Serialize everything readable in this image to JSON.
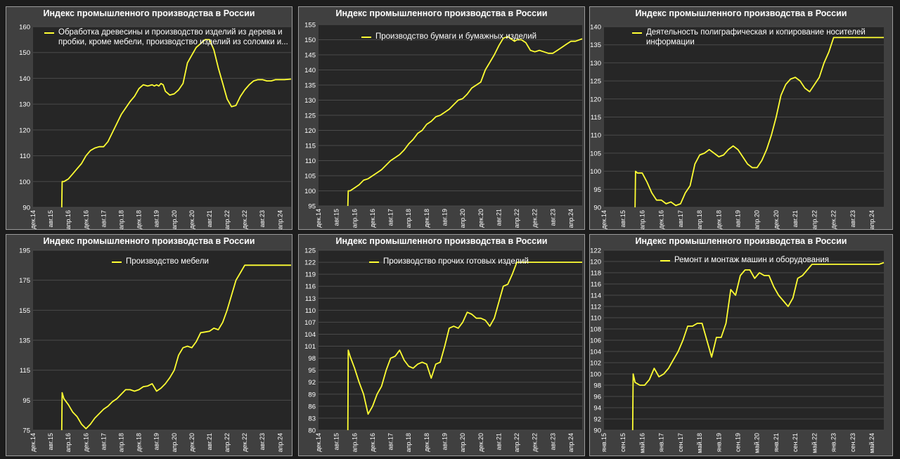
{
  "page": {
    "background": "#1c1c1c",
    "panel_background": "#404040",
    "plot_background": "#262626",
    "line_color": "#ffff33"
  },
  "chart_data": [
    {
      "type": "line",
      "title": "Индекс промышленного производства в России",
      "series": [
        {
          "name": "Обработка древесины и производство изделий из дерева и пробки, кроме мебели, производство изделий из соломки и..."
        }
      ],
      "ylim": [
        90,
        160
      ],
      "yticks": [
        90,
        100,
        110,
        120,
        130,
        140,
        150,
        160
      ],
      "xlim": [
        0,
        117
      ],
      "xtick_labels": [
        "дек.14",
        "авг.15",
        "апр.16",
        "дек.16",
        "авг.17",
        "апр.18",
        "дек.18",
        "авг.19",
        "апр.20",
        "дек.20",
        "авг.21",
        "апр.22",
        "дек.22",
        "авг.23",
        "апр.24"
      ],
      "xtick_positions": [
        0,
        8,
        16,
        24,
        32,
        40,
        48,
        56,
        64,
        72,
        80,
        88,
        96,
        104,
        112
      ],
      "x": [
        13,
        13.2,
        14,
        16,
        18,
        20,
        22,
        24,
        26,
        28,
        30,
        32,
        34,
        36,
        40,
        44,
        46,
        48,
        50,
        52,
        54,
        55,
        56,
        57,
        58,
        59,
        60,
        62,
        64,
        66,
        68,
        70,
        72,
        74,
        76,
        78,
        80,
        82,
        84,
        86,
        88,
        90,
        92,
        94,
        96,
        98,
        100,
        102,
        104,
        106,
        108,
        110,
        112,
        114,
        117
      ],
      "values": [
        90,
        100,
        100,
        101,
        103,
        105,
        107,
        110,
        112,
        113,
        113.5,
        113.5,
        115.5,
        119,
        126,
        131,
        133,
        136,
        137.5,
        137,
        137.5,
        137,
        137.5,
        137,
        138,
        137.5,
        135,
        133.5,
        134,
        135.5,
        138,
        146,
        149,
        152,
        153.5,
        155,
        155,
        151,
        144,
        138,
        132,
        129,
        129.5,
        133,
        135.5,
        137.5,
        139,
        139.5,
        139.5,
        139,
        139,
        139.5,
        139.5,
        139.5,
        139.7
      ]
    },
    {
      "type": "line",
      "title": "Индекс промышленного производства в России",
      "series": [
        {
          "name": "Производство бумаги и бумажных изделий"
        }
      ],
      "ylim": [
        95,
        155
      ],
      "yticks": [
        95,
        100,
        105,
        110,
        115,
        120,
        125,
        130,
        135,
        140,
        145,
        150,
        155
      ],
      "xlim": [
        0,
        117
      ],
      "xtick_labels": [
        "дек.14",
        "авг.15",
        "апр.16",
        "дек.16",
        "авг.17",
        "апр.18",
        "дек.18",
        "авг.19",
        "апр.20",
        "дек.20",
        "авг.21",
        "апр.22",
        "дек.22",
        "авг.23",
        "апр.24"
      ],
      "xtick_positions": [
        0,
        8,
        16,
        24,
        32,
        40,
        48,
        56,
        64,
        72,
        80,
        88,
        96,
        104,
        112
      ],
      "x": [
        13,
        13.2,
        14,
        16,
        18,
        20,
        22,
        24,
        26,
        28,
        30,
        32,
        34,
        36,
        38,
        40,
        42,
        44,
        46,
        48,
        50,
        52,
        54,
        56,
        58,
        60,
        62,
        64,
        66,
        68,
        70,
        72,
        74,
        76,
        78,
        80,
        82,
        84,
        86,
        87,
        88,
        90,
        92,
        94,
        96,
        98,
        100,
        102,
        104,
        106,
        108,
        110,
        112,
        114,
        117
      ],
      "values": [
        95,
        100,
        100,
        101,
        102,
        103.5,
        104,
        105,
        106,
        107,
        108.5,
        110,
        111,
        112,
        113.5,
        115.5,
        117,
        119,
        120,
        122,
        123,
        124.5,
        125,
        126,
        127,
        128.5,
        130,
        130.5,
        132,
        134,
        135,
        136,
        140,
        142.5,
        145,
        148,
        150.5,
        151,
        150,
        149.5,
        150,
        150,
        149,
        146.5,
        146,
        146.5,
        146,
        145.5,
        145.5,
        146.5,
        147.5,
        148.5,
        149.5,
        149.5,
        150.3
      ]
    },
    {
      "type": "line",
      "title": "Индекс промышленного производства в России",
      "series": [
        {
          "name": "Деятельность полиграфическая и копирование носителей информации"
        }
      ],
      "ylim": [
        90,
        140
      ],
      "yticks": [
        90,
        95,
        100,
        105,
        110,
        115,
        120,
        125,
        130,
        135,
        140
      ],
      "xlim": [
        0,
        117
      ],
      "xtick_labels": [
        "дек.14",
        "авг.15",
        "апр.16",
        "дек.16",
        "авг.17",
        "апр.18",
        "дек.18",
        "авг.19",
        "апр.20",
        "дек.20",
        "авг.21",
        "апр.22",
        "дек.22",
        "авг.23",
        "апр.24"
      ],
      "xtick_positions": [
        0,
        8,
        16,
        24,
        32,
        40,
        48,
        56,
        64,
        72,
        80,
        88,
        96,
        104,
        112
      ],
      "x": [
        13,
        13.2,
        14,
        16,
        18,
        20,
        22,
        24,
        26,
        28,
        30,
        32,
        34,
        36,
        38,
        40,
        42,
        44,
        46,
        48,
        50,
        52,
        54,
        56,
        58,
        60,
        62,
        64,
        66,
        68,
        70,
        72,
        74,
        76,
        78,
        80,
        82,
        84,
        86,
        88,
        90,
        92,
        94,
        96,
        98,
        100,
        102,
        104,
        106,
        108,
        110,
        112,
        114,
        117
      ],
      "values": [
        90,
        100,
        99.5,
        99.5,
        97,
        94,
        92,
        92,
        91,
        91.5,
        90.5,
        91,
        94,
        96,
        102,
        104.5,
        105,
        106,
        105,
        104,
        104.5,
        106,
        107,
        106,
        104,
        102,
        101,
        101,
        103,
        106,
        110,
        115,
        121,
        124,
        125.5,
        126,
        125,
        123,
        122,
        124,
        126,
        130,
        133,
        137,
        137,
        137,
        137,
        137,
        137,
        137,
        137,
        137,
        137,
        137
      ]
    },
    {
      "type": "line",
      "title": "Индекс промышленного производства в России",
      "series": [
        {
          "name": "Производство мебели"
        }
      ],
      "ylim": [
        75,
        195
      ],
      "yticks": [
        75,
        95,
        115,
        135,
        155,
        175,
        195
      ],
      "xlim": [
        0,
        117
      ],
      "xtick_labels": [
        "дек.14",
        "авг.15",
        "апр.16",
        "дек.16",
        "авг.17",
        "апр.18",
        "дек.18",
        "авг.19",
        "апр.20",
        "дек.20",
        "авг.21",
        "апр.22",
        "дек.22",
        "авг.23",
        "апр.24"
      ],
      "xtick_positions": [
        0,
        8,
        16,
        24,
        32,
        40,
        48,
        56,
        64,
        72,
        80,
        88,
        96,
        104,
        112
      ],
      "x": [
        13,
        13.2,
        14,
        16,
        18,
        20,
        22,
        24,
        26,
        28,
        30,
        32,
        34,
        36,
        38,
        40,
        42,
        44,
        46,
        48,
        50,
        52,
        54,
        56,
        58,
        60,
        62,
        64,
        66,
        68,
        70,
        72,
        74,
        76,
        78,
        80,
        82,
        84,
        86,
        88,
        90,
        92,
        94,
        96,
        98,
        100,
        102,
        104,
        106,
        108,
        110,
        112,
        114,
        117
      ],
      "values": [
        75,
        100,
        96,
        92,
        87,
        84,
        79,
        76,
        79,
        83,
        86,
        89,
        91,
        94,
        96,
        99,
        102,
        102,
        101,
        102,
        104,
        104.5,
        106,
        101,
        103,
        106,
        110,
        115,
        125,
        130,
        131,
        130,
        134,
        140,
        140.5,
        141,
        143,
        142,
        147,
        155,
        165,
        175,
        180,
        185,
        185,
        185,
        185,
        185,
        185,
        185,
        185,
        185,
        185,
        185
      ]
    },
    {
      "type": "line",
      "title": "Индекс промышленного производства в России",
      "series": [
        {
          "name": "Производство прочих готовых изделий"
        }
      ],
      "ylim": [
        80,
        125
      ],
      "yticks": [
        80,
        83,
        86,
        89,
        92,
        95,
        98,
        101,
        104,
        107,
        110,
        113,
        116,
        119,
        122,
        125
      ],
      "xlim": [
        0,
        117
      ],
      "xtick_labels": [
        "дек.14",
        "авг.15",
        "апр.16",
        "дек.16",
        "авг.17",
        "апр.18",
        "дек.18",
        "авг.19",
        "апр.20",
        "дек.20",
        "авг.21",
        "апр.22",
        "дек.22",
        "авг.23",
        "апр.24"
      ],
      "xtick_positions": [
        0,
        8,
        16,
        24,
        32,
        40,
        48,
        56,
        64,
        72,
        80,
        88,
        96,
        104,
        112
      ],
      "x": [
        13,
        13.2,
        14,
        16,
        18,
        20,
        22,
        24,
        26,
        28,
        30,
        32,
        34,
        36,
        38,
        40,
        42,
        44,
        46,
        48,
        50,
        52,
        54,
        56,
        58,
        60,
        62,
        64,
        66,
        68,
        70,
        72,
        74,
        76,
        78,
        80,
        82,
        84,
        86,
        88,
        90,
        92,
        94,
        96,
        98,
        100,
        102,
        104,
        106,
        108,
        110,
        112,
        114,
        117
      ],
      "values": [
        80,
        100,
        98.5,
        95.5,
        92,
        89,
        84,
        86,
        89,
        91,
        95,
        98,
        98.5,
        100,
        97.5,
        96,
        95.5,
        96.5,
        97,
        96.5,
        93,
        96.5,
        97,
        101,
        105.5,
        106,
        105.5,
        107,
        109.5,
        109,
        108,
        108,
        107.5,
        106,
        108,
        112,
        116,
        116.5,
        119,
        122,
        122,
        122,
        122,
        122,
        122,
        122,
        122,
        122,
        122,
        122,
        122,
        122,
        122,
        122
      ]
    },
    {
      "type": "line",
      "title": "Индекс промышленного производства в России",
      "series": [
        {
          "name": "Ремонт и монтаж машин и оборудования"
        }
      ],
      "ylim": [
        90,
        122
      ],
      "yticks": [
        90,
        92,
        94,
        96,
        98,
        100,
        102,
        104,
        106,
        108,
        110,
        112,
        114,
        116,
        118,
        120,
        122
      ],
      "xlim": [
        0,
        117
      ],
      "xtick_labels": [
        "янв.15",
        "сен.15",
        "май.16",
        "янв.17",
        "сен.17",
        "май.18",
        "янв.19",
        "сен.19",
        "май.20",
        "янв.21",
        "сен.21",
        "май.22",
        "янв.23",
        "сен.23",
        "май.24"
      ],
      "xtick_positions": [
        0,
        8,
        16,
        24,
        32,
        40,
        48,
        56,
        64,
        72,
        80,
        88,
        96,
        104,
        112
      ],
      "x": [
        12,
        12.2,
        13,
        15,
        17,
        19,
        21,
        23,
        25,
        27,
        29,
        31,
        33,
        35,
        37,
        39,
        41,
        43,
        45,
        47,
        49,
        51,
        53,
        55,
        57,
        59,
        61,
        63,
        65,
        67,
        69,
        71,
        73,
        75,
        77,
        79,
        81,
        83,
        85,
        87,
        89,
        91,
        93,
        95,
        97,
        99,
        101,
        103,
        105,
        107,
        109,
        111,
        113,
        115,
        117
      ],
      "values": [
        90,
        100,
        98.5,
        98,
        98,
        99,
        101,
        99.5,
        100,
        101,
        102.5,
        104,
        106,
        108.5,
        108.5,
        109,
        109,
        106,
        103,
        106.5,
        106.5,
        109,
        115,
        114,
        117.5,
        118.5,
        118.5,
        117,
        118,
        117.5,
        117.5,
        115.5,
        114,
        113,
        112,
        113.5,
        117,
        117.5,
        118.5,
        119.5,
        119.5,
        119.5,
        119.5,
        119.5,
        119.5,
        119.5,
        119.5,
        119.5,
        119.5,
        119.5,
        119.5,
        119.5,
        119.5,
        119.5,
        119.8
      ]
    }
  ]
}
